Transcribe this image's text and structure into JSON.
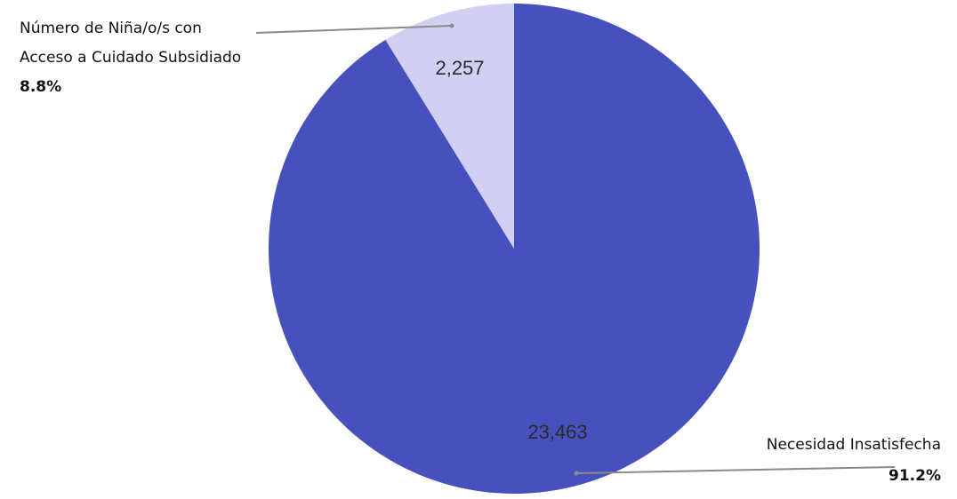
{
  "chart_data": {
    "type": "pie",
    "title": "",
    "start_angle_deg": 0,
    "direction": "clockwise",
    "slices": [
      {
        "label_lines": [
          "Necesidad Insatisfecha"
        ],
        "value": 23463,
        "value_label": "23,463",
        "percent_label": "91.2%",
        "color": "#4751bd"
      },
      {
        "label_lines": [
          "Número de Niña/o/s con",
          "Acceso a Cuidado Subsidiado"
        ],
        "value": 2257,
        "value_label": "2,257",
        "percent_label": "8.8%",
        "color": "#d1d0f2"
      }
    ],
    "leader_line_color": "#8a8a8a",
    "legend": "none"
  }
}
